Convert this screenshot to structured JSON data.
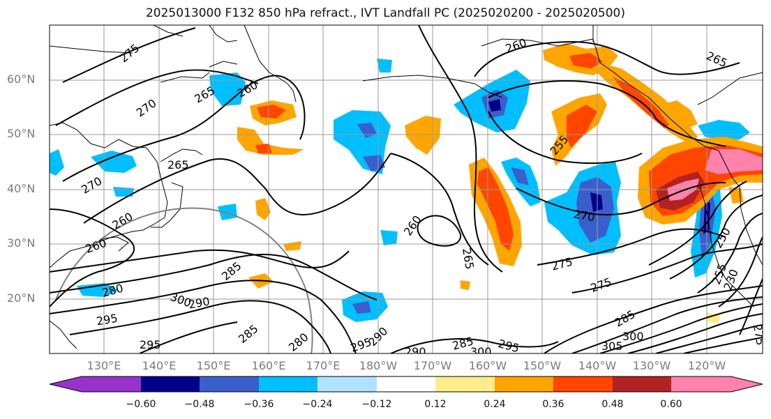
{
  "title": "2025013000 F132 850 hPa refract., IVT Landfall PC (2025020200 - 2025020500)",
  "lat_labels": [
    "60°N",
    "50°N",
    "40°N",
    "30°N",
    "20°N"
  ],
  "lon_labels": [
    "130°E",
    "140°E",
    "150°E",
    "160°E",
    "170°E",
    "180°W",
    "170°W",
    "160°W",
    "150°W",
    "140°W",
    "130°W",
    "120°W"
  ],
  "colorbar": {
    "ticks": [
      "−0.60",
      "−0.48",
      "−0.36",
      "−0.24",
      "−0.12",
      "0.12",
      "0.24",
      "0.36",
      "0.48",
      "0.60"
    ],
    "colors": [
      "#9932cc",
      "#00008b",
      "#3a5fcd",
      "#00bfff",
      "#b0e2ff",
      "#ffffff",
      "#ffec8b",
      "#ffa500",
      "#ff4500",
      "#b22222",
      "#ff82ab"
    ]
  },
  "contour_labels": [
    {
      "text": "275"
    },
    {
      "text": "270"
    },
    {
      "text": "265"
    },
    {
      "text": "260"
    },
    {
      "text": "265"
    },
    {
      "text": "270"
    },
    {
      "text": "260"
    },
    {
      "text": "260"
    },
    {
      "text": "265"
    },
    {
      "text": "260"
    },
    {
      "text": "265"
    },
    {
      "text": "255"
    },
    {
      "text": "270"
    },
    {
      "text": "275"
    },
    {
      "text": "275"
    },
    {
      "text": "260"
    },
    {
      "text": "280"
    },
    {
      "text": "285"
    },
    {
      "text": "290"
    },
    {
      "text": "295"
    },
    {
      "text": "300"
    },
    {
      "text": "295"
    },
    {
      "text": "285"
    },
    {
      "text": "280"
    },
    {
      "text": "295"
    },
    {
      "text": "290"
    },
    {
      "text": "285"
    },
    {
      "text": "290"
    },
    {
      "text": "300"
    },
    {
      "text": "295"
    },
    {
      "text": "285"
    },
    {
      "text": "300"
    },
    {
      "text": "305"
    },
    {
      "text": "275"
    },
    {
      "text": "250"
    },
    {
      "text": "255"
    },
    {
      "text": "230"
    }
  ]
}
